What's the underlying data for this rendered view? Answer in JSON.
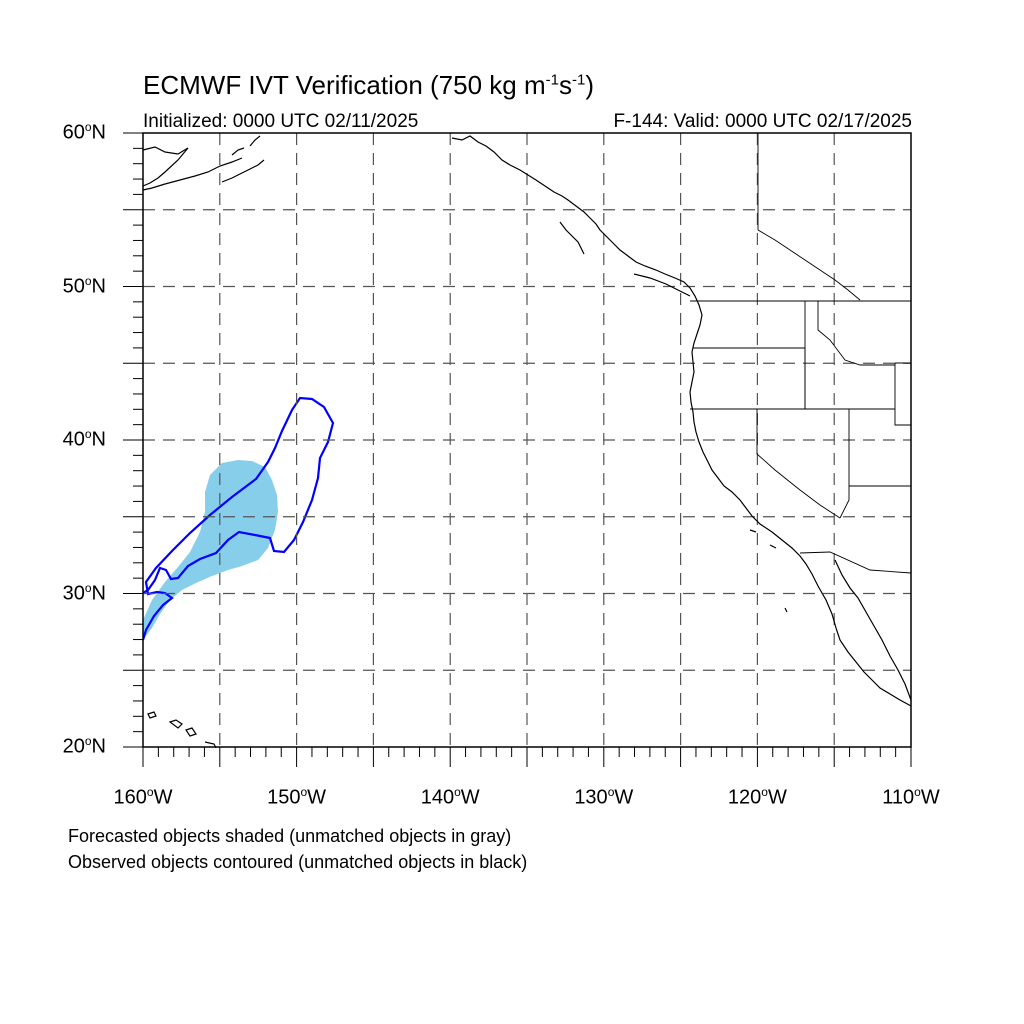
{
  "title": {
    "prefix": "ECMWF IVT Verification (750 kg m",
    "sup1": "-1",
    "mid": "s",
    "sup2": "-1",
    "suffix": ")"
  },
  "initialized": "Initialized: 0000 UTC 02/11/2025",
  "valid": "F-144: Valid: 0000 UTC 02/17/2025",
  "map": {
    "lon_range": [
      -160,
      -110
    ],
    "lat_range": [
      20,
      60
    ],
    "grid_lon_step": 5,
    "grid_lat_step": 5,
    "lat_labels": [
      {
        "value": 60,
        "text": "60",
        "suffix": "N"
      },
      {
        "value": 50,
        "text": "50",
        "suffix": "N"
      },
      {
        "value": 40,
        "text": "40",
        "suffix": "N"
      },
      {
        "value": 30,
        "text": "30",
        "suffix": "N"
      },
      {
        "value": 20,
        "text": "20",
        "suffix": "N"
      }
    ],
    "lon_labels": [
      {
        "value": -160,
        "text": "160",
        "suffix": "W"
      },
      {
        "value": -150,
        "text": "150",
        "suffix": "W"
      },
      {
        "value": -140,
        "text": "140",
        "suffix": "W"
      },
      {
        "value": -130,
        "text": "130",
        "suffix": "W"
      },
      {
        "value": -120,
        "text": "120",
        "suffix": "W"
      },
      {
        "value": -110,
        "text": "110",
        "suffix": "W"
      }
    ],
    "forecast_color": "#87ceeb",
    "observed_color": "#0000ff",
    "grid_color": "#555555"
  },
  "captions": {
    "line1": "Forecasted objects shaded (unmatched objects in gray)",
    "line2": "Observed objects contoured (unmatched objects in black)"
  }
}
